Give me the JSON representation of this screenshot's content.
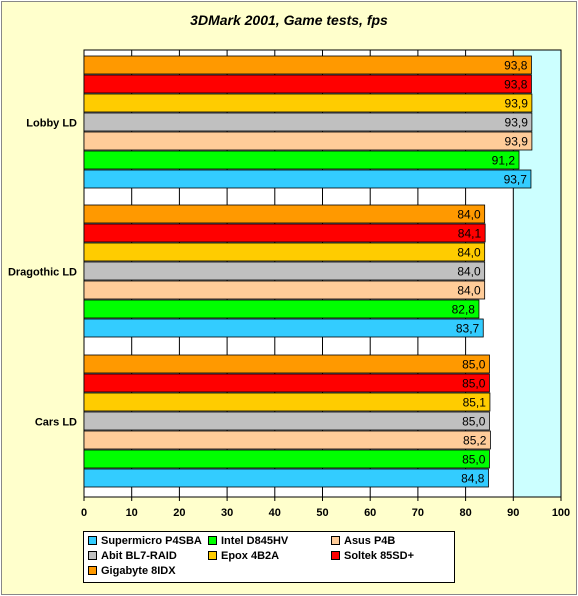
{
  "chart_data": {
    "type": "bar",
    "orientation": "horizontal",
    "title": "3DMark 2001, Game tests, fps",
    "categories": [
      "Lobby LD",
      "Dragothic LD",
      "Cars LD"
    ],
    "xlim": [
      0,
      100
    ],
    "xticks": [
      "0",
      "10",
      "20",
      "30",
      "40",
      "50",
      "60",
      "70",
      "80",
      "90",
      "100"
    ],
    "grid": true,
    "legend_position": "bottom",
    "series": [
      {
        "name": "Gigabyte 8IDX",
        "color": "#ff9900",
        "values": [
          93.8,
          84.0,
          85.0
        ],
        "labels": [
          "93,8",
          "84,0",
          "85,0"
        ]
      },
      {
        "name": "Soltek 85SD+",
        "color": "#ff0000",
        "values": [
          93.8,
          84.1,
          85.0
        ],
        "labels": [
          "93,8",
          "84,1",
          "85,0"
        ]
      },
      {
        "name": "Epox 4B2A",
        "color": "#ffcc00",
        "values": [
          93.9,
          84.0,
          85.1
        ],
        "labels": [
          "93,9",
          "84,0",
          "85,1"
        ]
      },
      {
        "name": "Abit BL7-RAID",
        "color": "#c0c0c0",
        "values": [
          93.9,
          84.0,
          85.0
        ],
        "labels": [
          "93,9",
          "84,0",
          "85,0"
        ]
      },
      {
        "name": "Asus P4B",
        "color": "#ffcc99",
        "values": [
          93.9,
          84.0,
          85.2
        ],
        "labels": [
          "93,9",
          "84,0",
          "85,2"
        ]
      },
      {
        "name": "Intel D845HV",
        "color": "#00ff00",
        "values": [
          91.2,
          82.8,
          85.0
        ],
        "labels": [
          "91,2",
          "82,8",
          "85,0"
        ]
      },
      {
        "name": "Supermicro P4SBA",
        "color": "#33ccff",
        "values": [
          93.7,
          83.7,
          84.8
        ],
        "labels": [
          "93,7",
          "83,7",
          "84,8"
        ]
      }
    ],
    "legend_order": [
      "Supermicro P4SBA",
      "Intel D845HV",
      "Asus P4B",
      "Abit BL7-RAID",
      "Epox 4B2A",
      "Soltek 85SD+",
      "Gigabyte 8IDX"
    ]
  }
}
